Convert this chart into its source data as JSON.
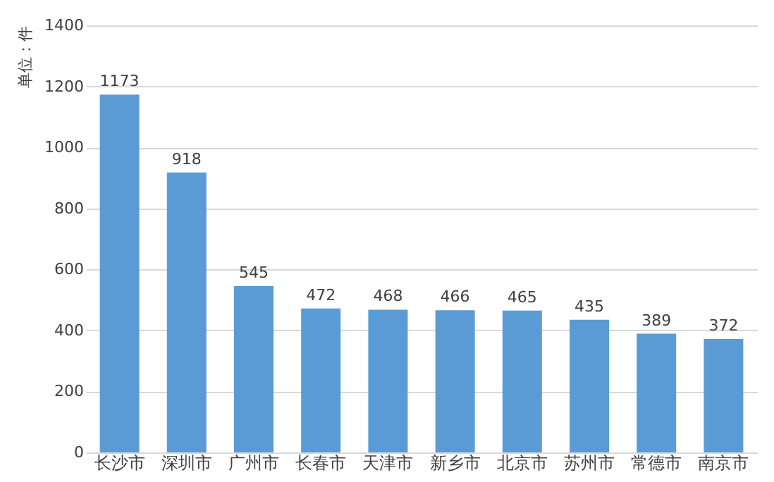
{
  "chart_data": {
    "type": "bar",
    "ylabel": "单位：件",
    "categories": [
      "长沙市",
      "深圳市",
      "广州市",
      "长春市",
      "天津市",
      "新乡市",
      "北京市",
      "苏州市",
      "常德市",
      "南京市"
    ],
    "values": [
      1173,
      918,
      545,
      472,
      468,
      466,
      465,
      435,
      389,
      372
    ],
    "color": "#5b9bd5",
    "ylim": [
      0,
      1400
    ],
    "yticks": [
      0,
      200,
      400,
      600,
      800,
      1000,
      1200,
      1400
    ],
    "grid": "y",
    "data_labels": true
  }
}
